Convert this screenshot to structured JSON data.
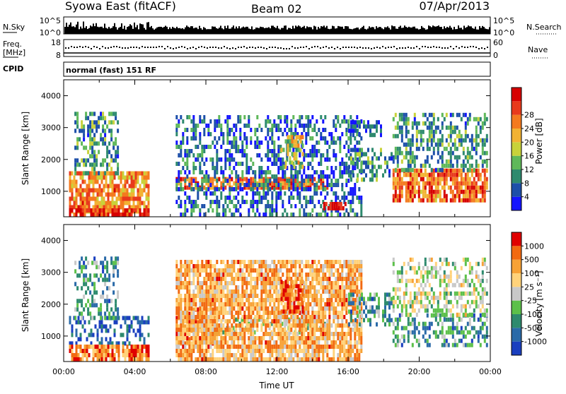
{
  "header": {
    "title": "Syowa East (fitACF)",
    "beam": "Beam 02",
    "date": "07/Apr/2013"
  },
  "top_panels": {
    "nsky_label": "N.Sky",
    "nsky_tick_top": "10^5",
    "nsky_tick_bottom": "10^0",
    "nsearch_label": "N.Search",
    "nsearch_tick_top": "10^5",
    "nsearch_tick_bottom": "10^0",
    "freq_label": "Freq.",
    "freq_unit": "[MHz]",
    "freq_tick_top": "18",
    "freq_tick_bottom": "8",
    "nave_label": "Nave",
    "nave_tick_top": "60",
    "nave_tick_bottom": "0",
    "cpid_label": "CPID",
    "cpid_text": "normal (fast) 151 RF"
  },
  "chart_data": [
    {
      "type": "heatmap",
      "parameter": "Power",
      "ylabel": "Slant Range [km]",
      "ylim": [
        200,
        4500
      ],
      "yticks": [
        "1000",
        "2000",
        "3000",
        "4000"
      ],
      "xlim_hours": [
        0,
        24
      ],
      "colorbar_label": "Power [dB]",
      "colorbar_ticks": [
        "4",
        "8",
        "12",
        "16",
        "20",
        "24",
        "28"
      ],
      "colorbar_colors": [
        "#1414ff",
        "#1d4fa9",
        "#2e8a6e",
        "#5fb85a",
        "#c8d23a",
        "#f2b233",
        "#f47a1f",
        "#e83a1c",
        "#d60000"
      ],
      "regions": [
        {
          "t0": 0.3,
          "t1": 4.8,
          "r0": 300,
          "r1": 1500,
          "v": 0.7
        },
        {
          "t0": 0.3,
          "t1": 4.8,
          "r0": 200,
          "r1": 450,
          "v": 0.95
        },
        {
          "t0": 0.6,
          "t1": 3.0,
          "r0": 1500,
          "r1": 3400,
          "v": 0.3
        },
        {
          "t0": 6.3,
          "t1": 14.8,
          "r0": 1050,
          "r1": 1350,
          "v": 0.75
        },
        {
          "t0": 6.3,
          "t1": 16.8,
          "r0": 200,
          "r1": 3300,
          "v": 0.2
        },
        {
          "t0": 12.2,
          "t1": 13.5,
          "r0": 1700,
          "r1": 2700,
          "v": 0.5
        },
        {
          "t0": 14.6,
          "t1": 15.8,
          "r0": 400,
          "r1": 650,
          "v": 0.95
        },
        {
          "t0": 16.0,
          "t1": 18.5,
          "r0": 1300,
          "r1": 2300,
          "v": 0.3
        },
        {
          "t0": 16.0,
          "t1": 17.8,
          "r0": 2700,
          "r1": 3100,
          "v": 0.15
        },
        {
          "t0": 18.5,
          "t1": 23.8,
          "r0": 650,
          "r1": 1600,
          "v": 0.75
        },
        {
          "t0": 18.5,
          "t1": 23.8,
          "r0": 1600,
          "r1": 3400,
          "v": 0.3
        }
      ]
    },
    {
      "type": "heatmap",
      "parameter": "Velocity",
      "ylabel": "Slant Range [km]",
      "ylim": [
        200,
        4500
      ],
      "yticks": [
        "1000",
        "2000",
        "3000",
        "4000"
      ],
      "xlabel": "Time UT",
      "xticks": [
        "00:00",
        "04:00",
        "08:00",
        "12:00",
        "16:00",
        "20:00",
        "00:00"
      ],
      "xlim_hours": [
        0,
        24
      ],
      "colorbar_label": "Velocity [m s⁻¹]",
      "colorbar_ticks": [
        "1000",
        "500",
        "100",
        "25",
        "-25",
        "-100",
        "-500",
        "-1000"
      ],
      "colorbar_colors": [
        "#1a3fbf",
        "#2a6aa8",
        "#2e8a6e",
        "#5cc04a",
        "#c8c8c8",
        "#ffd27a",
        "#f7a236",
        "#f26a12",
        "#e00000"
      ],
      "regions": [
        {
          "t0": 0.3,
          "t1": 4.8,
          "r0": 700,
          "r1": 1500,
          "v": 0.1
        },
        {
          "t0": 0.3,
          "t1": 4.8,
          "r0": 200,
          "r1": 700,
          "v": 0.8
        },
        {
          "t0": 0.6,
          "t1": 3.0,
          "r0": 1500,
          "r1": 3400,
          "v": 0.3
        },
        {
          "t0": 6.3,
          "t1": 8.5,
          "r0": 700,
          "r1": 1800,
          "v": 0.75
        },
        {
          "t0": 8.3,
          "t1": 14.8,
          "r0": 1050,
          "r1": 1500,
          "v": 0.45
        },
        {
          "t0": 6.3,
          "t1": 16.8,
          "r0": 200,
          "r1": 3300,
          "v": 0.7
        },
        {
          "t0": 12.2,
          "t1": 13.5,
          "r0": 1700,
          "r1": 2700,
          "v": 0.82
        },
        {
          "t0": 16.0,
          "t1": 18.5,
          "r0": 1300,
          "r1": 2300,
          "v": 0.3
        },
        {
          "t0": 18.5,
          "t1": 23.8,
          "r0": 650,
          "r1": 1600,
          "v": 0.28
        },
        {
          "t0": 18.5,
          "t1": 23.8,
          "r0": 1600,
          "r1": 3400,
          "v": 0.5
        }
      ]
    }
  ]
}
